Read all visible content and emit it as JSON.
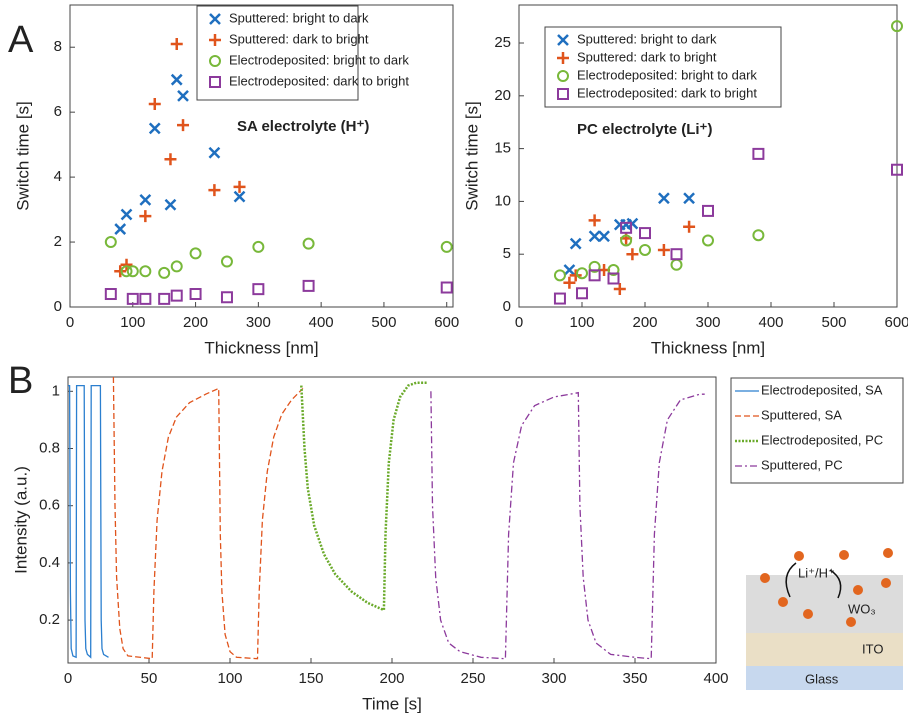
{
  "panels": [
    "A",
    "B"
  ],
  "schematic": {
    "ion_label": "Li⁺/H⁺",
    "layers": [
      "WO₃",
      "ITO",
      "Glass"
    ]
  },
  "chart_data": [
    {
      "type": "scatter",
      "xlabel": "Thickness [nm]",
      "ylabel": "Switch time [s]",
      "annotation": {
        "text": "SA electrolyte (H⁺)",
        "color": "#6a9c2e"
      },
      "xlim": [
        0,
        610
      ],
      "ylim": [
        0,
        9.3
      ],
      "xticks": [
        0,
        100,
        200,
        300,
        400,
        500,
        600
      ],
      "yticks": [
        0,
        2,
        4,
        6,
        8
      ],
      "series": [
        {
          "name": "Sputtered: bright to dark",
          "color": "#1f6fbf",
          "marker": "x",
          "x": [
            80,
            90,
            120,
            135,
            160,
            170,
            180,
            230,
            270
          ],
          "values": [
            2.4,
            2.85,
            3.3,
            5.5,
            3.15,
            7,
            6.5,
            4.75,
            3.4
          ]
        },
        {
          "name": "Sputtered: dark to bright",
          "color": "#e0541c",
          "marker": "+",
          "x": [
            80,
            90,
            120,
            135,
            160,
            170,
            180,
            230,
            270
          ],
          "values": [
            1.1,
            1.3,
            2.8,
            6.25,
            4.55,
            8.1,
            5.6,
            3.6,
            3.7
          ]
        },
        {
          "name": "Electrodeposited: bright to dark",
          "color": "#78b83a",
          "marker": "o",
          "x": [
            65,
            90,
            100,
            120,
            150,
            170,
            200,
            250,
            300,
            380,
            600
          ],
          "values": [
            2,
            1.1,
            1.1,
            1.1,
            1.05,
            1.25,
            1.65,
            1.4,
            1.85,
            1.95,
            1.85
          ]
        },
        {
          "name": "Electrodeposited: dark to bright",
          "color": "#8c3a9c",
          "marker": "s",
          "x": [
            65,
            100,
            120,
            150,
            170,
            200,
            250,
            300,
            380,
            600
          ],
          "values": [
            0.4,
            0.25,
            0.25,
            0.25,
            0.35,
            0.4,
            0.3,
            0.55,
            0.65,
            0.6
          ]
        }
      ]
    },
    {
      "type": "scatter",
      "xlabel": "Thickness [nm]",
      "ylabel": "Switch time [s]",
      "annotation": {
        "text": "PC electrolyte (Li⁺)",
        "color": "#6a9c2e"
      },
      "xlim": [
        0,
        600
      ],
      "ylim": [
        0,
        28.6
      ],
      "xticks": [
        0,
        100,
        200,
        300,
        400,
        500,
        600
      ],
      "yticks": [
        0,
        5,
        10,
        15,
        20,
        25
      ],
      "series": [
        {
          "name": "Sputtered: bright to dark",
          "color": "#1f6fbf",
          "marker": "x",
          "x": [
            80,
            90,
            120,
            135,
            160,
            170,
            180,
            230,
            270
          ],
          "values": [
            3.5,
            6,
            6.7,
            6.7,
            7.8,
            7.8,
            7.9,
            10.3,
            10.3
          ]
        },
        {
          "name": "Sputtered: dark to bright",
          "color": "#e0541c",
          "marker": "+",
          "x": [
            80,
            90,
            120,
            135,
            160,
            170,
            180,
            230,
            270
          ],
          "values": [
            2.3,
            3,
            8.2,
            3.5,
            1.7,
            6.5,
            5,
            5.4,
            7.6
          ]
        },
        {
          "name": "Electrodeposited: bright to dark",
          "color": "#78b83a",
          "marker": "o",
          "x": [
            65,
            100,
            120,
            150,
            170,
            200,
            250,
            300,
            380,
            600
          ],
          "values": [
            3,
            3.2,
            3.8,
            3.5,
            6.3,
            5.4,
            4,
            6.3,
            6.8,
            26.6
          ]
        },
        {
          "name": "Electrodeposited: dark to bright",
          "color": "#8c3a9c",
          "marker": "s",
          "x": [
            65,
            100,
            120,
            150,
            170,
            200,
            250,
            300,
            380,
            600
          ],
          "values": [
            0.8,
            1.3,
            3,
            2.7,
            7.5,
            7,
            5,
            9.1,
            14.5,
            13
          ]
        }
      ]
    },
    {
      "type": "line",
      "xlabel": "Time [s]",
      "ylabel": "Intensity  (a.u.)",
      "xlim": [
        0,
        400
      ],
      "ylim": [
        0.05,
        1.05
      ],
      "xticks": [
        0,
        50,
        100,
        150,
        200,
        250,
        300,
        350,
        400
      ],
      "yticks": [
        0.2,
        0.4,
        0.6,
        0.8,
        1
      ],
      "series": [
        {
          "name": "Electrodeposited, SA",
          "color": "#2b7fcf",
          "dash": "solid",
          "x": [
            0,
            1,
            1.5,
            2,
            3,
            5,
            5.3,
            10,
            10.5,
            11,
            12,
            14,
            14.3,
            20,
            20.5,
            21,
            22,
            25
          ],
          "values": [
            1.02,
            1.02,
            0.3,
            0.1,
            0.075,
            0.07,
            1.02,
            1.02,
            0.2,
            0.1,
            0.08,
            0.07,
            1.02,
            1.02,
            0.2,
            0.1,
            0.08,
            0.07
          ]
        },
        {
          "name": "Sputtered, SA",
          "color": "#e0541c",
          "dash": "dashed",
          "x": [
            28,
            29,
            30,
            32,
            34,
            37,
            52,
            53,
            55,
            58,
            62,
            67,
            75,
            85,
            93,
            94,
            95,
            97,
            100,
            104,
            117,
            118,
            120,
            123,
            127,
            132,
            138,
            145
          ],
          "values": [
            1.05,
            0.6,
            0.35,
            0.17,
            0.1,
            0.075,
            0.065,
            0.3,
            0.55,
            0.72,
            0.84,
            0.91,
            0.96,
            0.99,
            1.01,
            0.5,
            0.3,
            0.15,
            0.09,
            0.07,
            0.065,
            0.3,
            0.55,
            0.72,
            0.84,
            0.92,
            0.97,
            1.01
          ]
        },
        {
          "name": "Electrodeposited, PC",
          "color": "#6aaa2a",
          "dash": "dotted",
          "x": [
            144,
            146,
            148,
            152,
            158,
            165,
            175,
            185,
            195,
            196,
            198,
            201,
            205,
            210,
            215,
            222
          ],
          "values": [
            1.02,
            0.8,
            0.66,
            0.53,
            0.43,
            0.36,
            0.3,
            0.26,
            0.235,
            0.5,
            0.75,
            0.9,
            0.98,
            1.02,
            1.03,
            1.03
          ]
        },
        {
          "name": "Sputtered, PC",
          "color": "#8c3a9c",
          "dash": "dashdot",
          "x": [
            224,
            225,
            227,
            230,
            235,
            242,
            255,
            270,
            272,
            275,
            280,
            288,
            300,
            315,
            316,
            318,
            321,
            326,
            335,
            350,
            360,
            362,
            365,
            370,
            378,
            390,
            393
          ],
          "values": [
            1.0,
            0.6,
            0.35,
            0.2,
            0.12,
            0.09,
            0.07,
            0.065,
            0.5,
            0.75,
            0.88,
            0.95,
            0.98,
            0.995,
            0.6,
            0.35,
            0.2,
            0.12,
            0.08,
            0.07,
            0.065,
            0.5,
            0.75,
            0.9,
            0.97,
            0.99,
            0.99
          ]
        }
      ]
    }
  ]
}
